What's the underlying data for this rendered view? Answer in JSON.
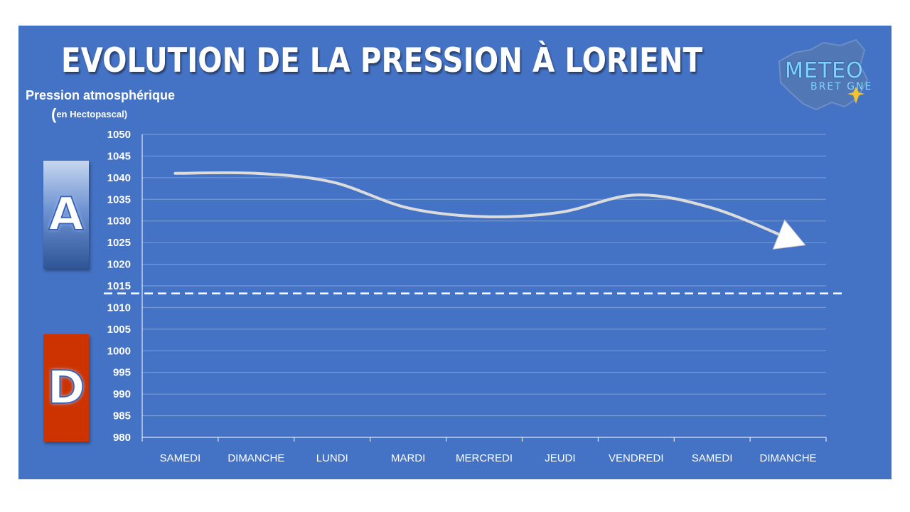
{
  "title": "EVOLUTION DE LA PRESSION À LORIENT",
  "ylabel_line1": "Pression atmosphérique",
  "ylabel_line2_paren": "(",
  "ylabel_line2": "en Hectopascal)",
  "logo": {
    "line1": "METEO",
    "line2": "BRET GNE"
  },
  "badges": {
    "high": "A",
    "low": "D",
    "high_color": "#4472c4",
    "low_color": "#cc3300"
  },
  "colors": {
    "background": "#4472c4",
    "line": "#d9d9d9",
    "text": "#ffffff"
  },
  "chart_data": {
    "type": "line",
    "title": "EVOLUTION DE LA PRESSION À LORIENT",
    "ylabel": "Pression atmosphérique (en Hectopascal)",
    "xlabel": "",
    "categories": [
      "SAMEDI",
      "DIMANCHE",
      "LUNDI",
      "MARDI",
      "MERCREDI",
      "JEUDI",
      "VENDREDI",
      "SAMEDI",
      "DIMANCHE"
    ],
    "values": [
      1041,
      1041,
      1039,
      1033,
      1031,
      1032,
      1036,
      1033,
      1026
    ],
    "ylim": [
      980,
      1050
    ],
    "yticks": [
      1050,
      1045,
      1040,
      1035,
      1030,
      1025,
      1020,
      1015,
      1010,
      1005,
      1000,
      995,
      990,
      985,
      980
    ],
    "reference_line": {
      "value": 1013.25,
      "style": "dashed"
    },
    "grid": true,
    "arrow_end": true
  }
}
